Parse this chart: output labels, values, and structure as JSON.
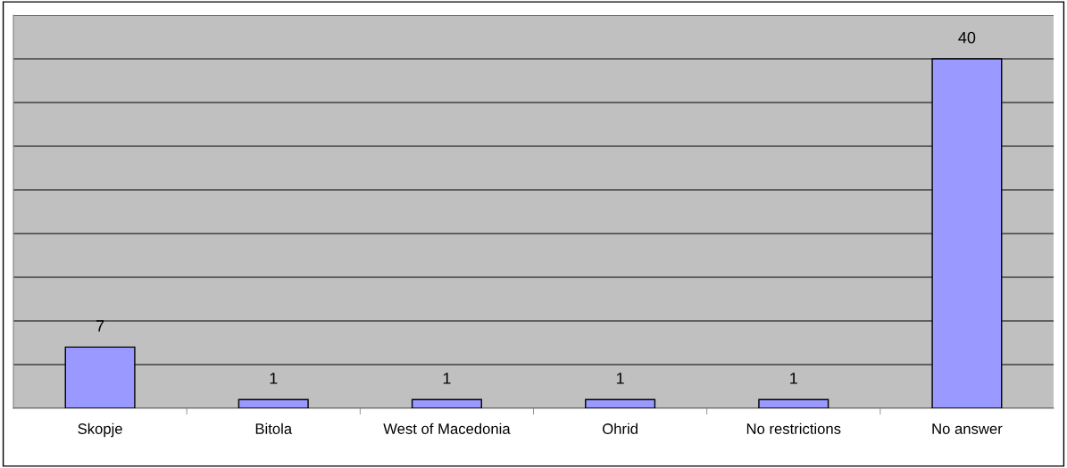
{
  "chart_data": {
    "type": "bar",
    "categories": [
      "Skopje",
      "Bitola",
      "West of Macedonia",
      "Ohrid",
      "No restrictions",
      "No answer"
    ],
    "values": [
      7,
      1,
      1,
      1,
      1,
      40
    ],
    "color": "#9999ff",
    "ylim": [
      0,
      45
    ],
    "yticks": [
      {
        "value": 0,
        "label": null
      },
      {
        "value": 5,
        "label": null
      },
      {
        "value": 10,
        "label": null
      },
      {
        "value": 15,
        "label": null
      },
      {
        "value": 20,
        "label": null
      },
      {
        "value": 25,
        "label": null
      },
      {
        "value": 30,
        "label": null
      },
      {
        "value": 35,
        "label": null
      },
      {
        "value": 40,
        "label": null
      },
      {
        "value": 45,
        "label": null
      }
    ],
    "tick_labels": "x",
    "grid": "y",
    "data_labels": true,
    "legend": false
  }
}
